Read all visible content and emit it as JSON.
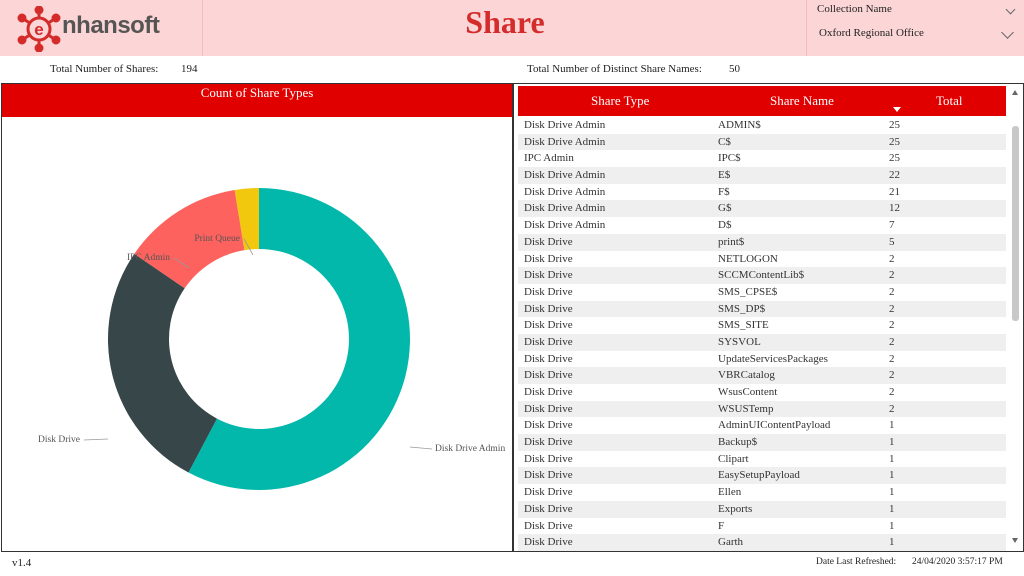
{
  "header": {
    "logo_text": "nhansoft",
    "title": "Share",
    "filter_label": "Collection Name",
    "filter_value": "Oxford Regional Office",
    "brand_color": "#e00000"
  },
  "stats": {
    "total_shares_label": "Total Number of Shares:",
    "total_shares_value": "194",
    "distinct_names_label": "Total Number of Distinct Share Names:",
    "distinct_names_value": "50"
  },
  "chart_data": {
    "type": "pie",
    "title": "Count of Share Types",
    "donut": true,
    "categories": [
      "Disk Drive Admin",
      "Disk Drive",
      "IPC Admin",
      "Print Queue"
    ],
    "values": [
      112,
      52,
      25,
      5
    ],
    "colors": [
      "#01b8aa",
      "#374649",
      "#fd625e",
      "#f2c80f"
    ],
    "legend": "none"
  },
  "table": {
    "headers": [
      "Share Type",
      "Share Name",
      "Total"
    ],
    "sort_column": "Total",
    "rows": [
      [
        "Disk Drive Admin",
        "ADMIN$",
        "25"
      ],
      [
        "Disk Drive Admin",
        "C$",
        "25"
      ],
      [
        "IPC Admin",
        "IPC$",
        "25"
      ],
      [
        "Disk Drive Admin",
        "E$",
        "22"
      ],
      [
        "Disk Drive Admin",
        "F$",
        "21"
      ],
      [
        "Disk Drive Admin",
        "G$",
        "12"
      ],
      [
        "Disk Drive Admin",
        "D$",
        "7"
      ],
      [
        "Disk Drive",
        "print$",
        "5"
      ],
      [
        "Disk Drive",
        "NETLOGON",
        "2"
      ],
      [
        "Disk Drive",
        "SCCMContentLib$",
        "2"
      ],
      [
        "Disk Drive",
        "SMS_CPSE$",
        "2"
      ],
      [
        "Disk Drive",
        "SMS_DP$",
        "2"
      ],
      [
        "Disk Drive",
        "SMS_SITE",
        "2"
      ],
      [
        "Disk Drive",
        "SYSVOL",
        "2"
      ],
      [
        "Disk Drive",
        "UpdateServicesPackages",
        "2"
      ],
      [
        "Disk Drive",
        "VBRCatalog",
        "2"
      ],
      [
        "Disk Drive",
        "WsusContent",
        "2"
      ],
      [
        "Disk Drive",
        "WSUSTemp",
        "2"
      ],
      [
        "Disk Drive",
        "AdminUIContentPayload",
        "1"
      ],
      [
        "Disk Drive",
        "Backup$",
        "1"
      ],
      [
        "Disk Drive",
        "Clipart",
        "1"
      ],
      [
        "Disk Drive",
        "EasySetupPayload",
        "1"
      ],
      [
        "Disk Drive",
        "Ellen",
        "1"
      ],
      [
        "Disk Drive",
        "Exports",
        "1"
      ],
      [
        "Disk Drive",
        "F",
        "1"
      ],
      [
        "Disk Drive",
        "Garth",
        "1"
      ]
    ]
  },
  "footer": {
    "version": "v1.4",
    "refreshed_label": "Date Last Refreshed:",
    "refreshed_value": "24/04/2020 3:57:17 PM"
  }
}
